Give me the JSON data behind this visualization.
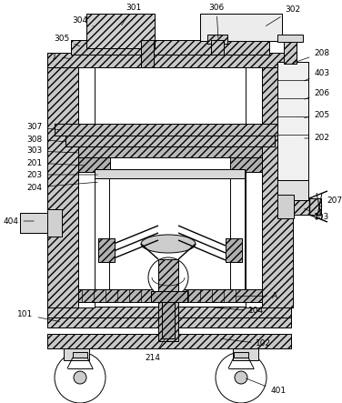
{
  "bg_color": "#ffffff",
  "lc": "#000000",
  "lw": 0.7,
  "fig_w": 3.76,
  "fig_h": 4.43,
  "dpi": 100
}
